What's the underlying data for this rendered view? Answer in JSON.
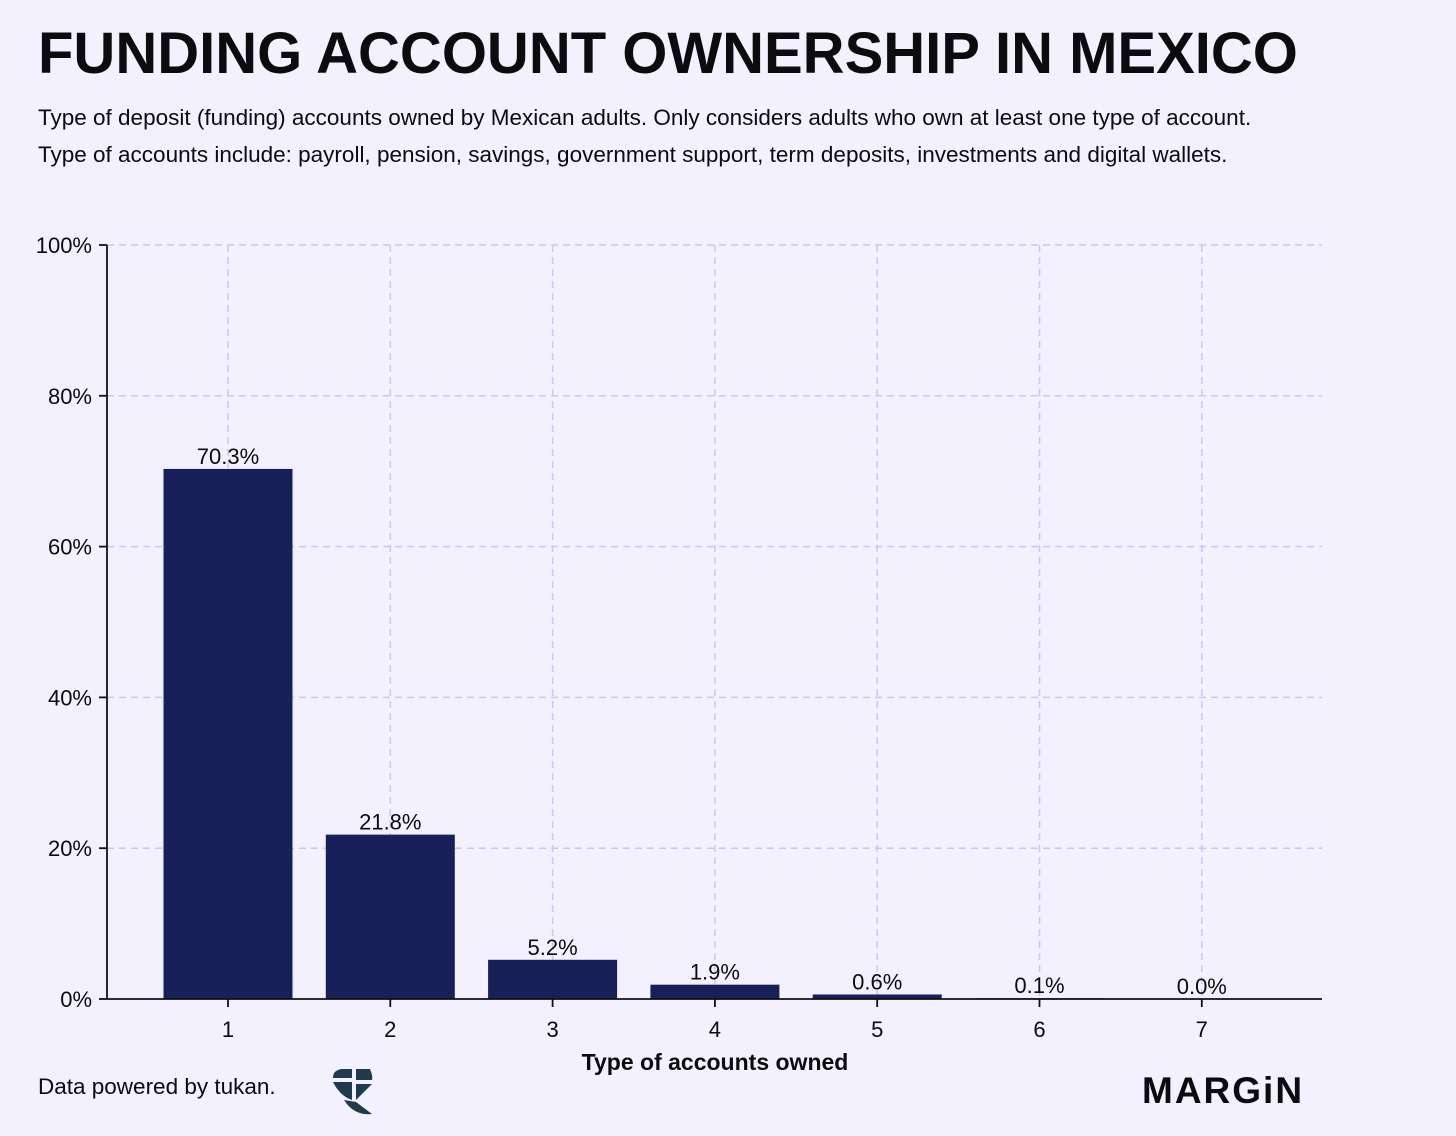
{
  "header": {
    "title": "FUNDING ACCOUNT OWNERSHIP IN MEXICO",
    "subtitle_line1": "Type of deposit (funding) accounts owned by Mexican adults. Only considers adults who own at least one type of account.",
    "subtitle_line2": "Type of accounts include: payroll, pension, savings, government support, term deposits, investments and digital wallets."
  },
  "chart_data": {
    "type": "bar",
    "categories": [
      "1",
      "2",
      "3",
      "4",
      "5",
      "6",
      "7"
    ],
    "values": [
      70.3,
      21.8,
      5.2,
      1.9,
      0.6,
      0.1,
      0.0
    ],
    "data_labels": [
      "70.3%",
      "21.8%",
      "5.2%",
      "1.9%",
      "0.6%",
      "0.1%",
      "0.0%"
    ],
    "xlabel": "Type of accounts owned",
    "ylabel": "",
    "ylim": [
      0,
      100
    ],
    "yticks": [
      0,
      20,
      40,
      60,
      80,
      100
    ],
    "ytick_labels": [
      "0%",
      "20%",
      "40%",
      "60%",
      "80%",
      "100%"
    ],
    "grid": true,
    "colors": {
      "bar": "#18205a",
      "grid": "#c9c8f2",
      "axis": "#111111",
      "background": "#f2f1fd"
    }
  },
  "footer": {
    "credit": "Data powered by tukan.",
    "logo_icon": "tukan-bird-icon",
    "brand": "MARGiN"
  }
}
